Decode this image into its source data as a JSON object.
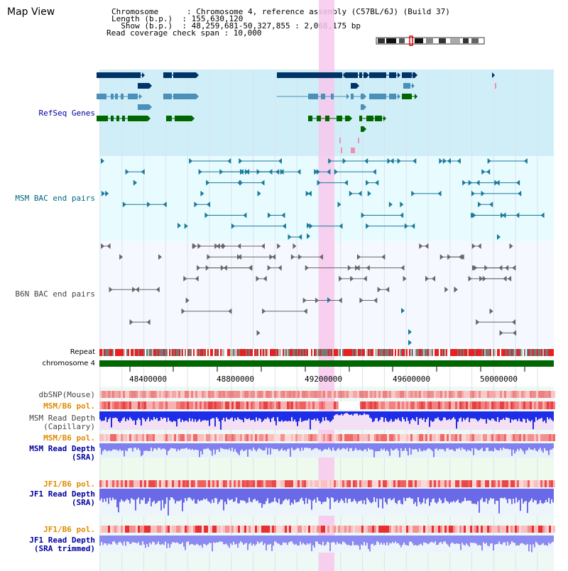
{
  "page_title": "Map View",
  "header": {
    "chromosome_line": "Chromosome      : Chromosome 4, reference assembly (C57BL/6J) (Build 37)",
    "length_line": "Length (b.p.)  : 155,630,120",
    "show_line": "  Show (b.p.)  : 48,259,681-50,327,855 : 2,068,175 bp",
    "coverage_line": "Read coverage check span : 10,000"
  },
  "tracks": {
    "refseq": "RefSeq Genes",
    "msm_bac": "MSM BAC end pairs",
    "b6n_bac": "B6N BAC end pairs",
    "repeat": "Repeat",
    "chromosome": "chromosome 4",
    "dbsnp": "dbSNP(Mouse)",
    "msm_b6_pol_1": "MSM/B6 pol.",
    "msm_depth_cap_1": "MSM Read Depth",
    "msm_depth_cap_2": "(Capillary)",
    "msm_b6_pol_2": "MSM/B6 pol.",
    "msm_depth_sra_1": "MSM Read Depth",
    "msm_depth_sra_2": "(SRA)",
    "jf1_b6_pol_1": "JF1/B6 pol.",
    "jf1_depth_sra_1": "JF1 Read Depth",
    "jf1_depth_sra_2": "(SRA)",
    "jf1_b6_pol_2": "JF1/B6 pol.",
    "jf1_depth_trim_1": "JF1 Read Depth",
    "jf1_depth_trim_2": "(SRA trimmed)"
  },
  "axis": {
    "ticks": [
      "48400000",
      "48800000",
      "49200000",
      "49600000",
      "50000000"
    ]
  },
  "colors": {
    "refseq_bg": "#cfeef8",
    "msm_bg": "#e8fbff",
    "b6n_bg": "#f6f8ff",
    "refseq_label": "#0000a0",
    "msm_label": "#006680",
    "b6n_label": "#444444",
    "orange_label": "#e08a00",
    "blue_label": "#0000a0",
    "highlight": "#f8c8ec",
    "chromosome_bar": "#006600",
    "gene_dark": "#003366",
    "gene_mid": "#4a90b8",
    "gene_green": "#006600"
  }
}
